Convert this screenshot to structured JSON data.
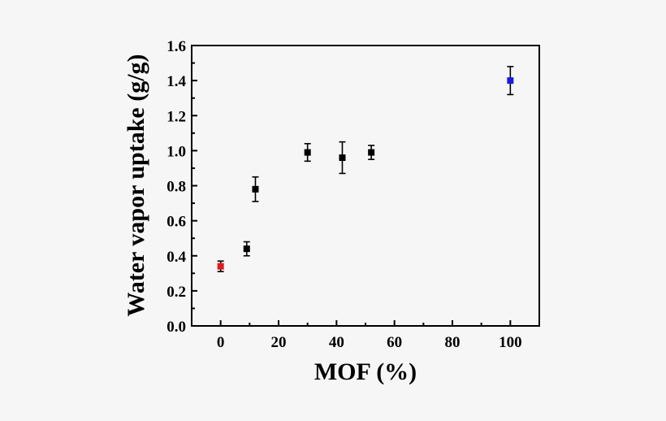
{
  "chart_data": {
    "type": "scatter",
    "xlabel": "MOF (%)",
    "ylabel": "Water vapor uptake (g/g)",
    "xlim": [
      -10,
      110
    ],
    "ylim": [
      0.0,
      1.6
    ],
    "x_ticks": [
      "0",
      "20",
      "40",
      "60",
      "80",
      "100"
    ],
    "y_ticks": [
      "0.0",
      "0.2",
      "0.4",
      "0.6",
      "0.8",
      "1.0",
      "1.2",
      "1.4",
      "1.6"
    ],
    "grid": false,
    "points": [
      {
        "x": 0,
        "y": 0.34,
        "err": 0.03,
        "color": "#e0191b"
      },
      {
        "x": 9,
        "y": 0.44,
        "err": 0.04,
        "color": "#000000"
      },
      {
        "x": 12,
        "y": 0.78,
        "err": 0.07,
        "color": "#000000"
      },
      {
        "x": 30,
        "y": 0.99,
        "err": 0.05,
        "color": "#000000"
      },
      {
        "x": 42,
        "y": 0.96,
        "err": 0.09,
        "color": "#000000"
      },
      {
        "x": 52,
        "y": 0.99,
        "err": 0.04,
        "color": "#000000"
      },
      {
        "x": 100,
        "y": 1.4,
        "err": 0.08,
        "color": "#1a1ae0"
      }
    ]
  }
}
